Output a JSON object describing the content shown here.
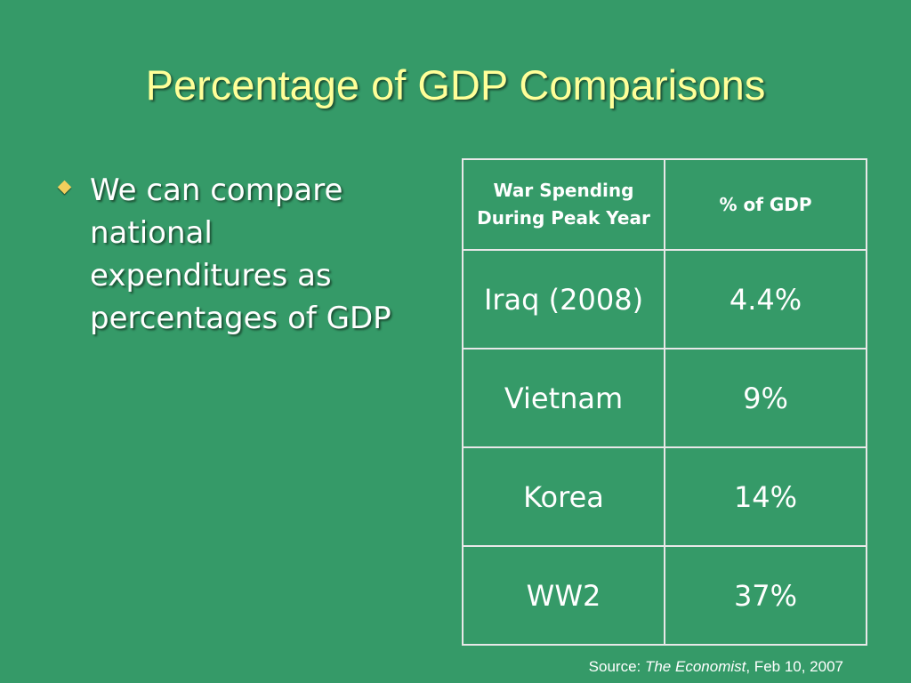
{
  "slide": {
    "title": "Percentage of GDP Comparisons",
    "bullet": "We can compare national expenditures as percentages of GDP",
    "bullet_icon": "diamond-bullet-icon"
  },
  "table": {
    "headers": [
      "War Spending During Peak Year",
      "% of GDP"
    ],
    "rows": [
      [
        "Iraq (2008)",
        "4.4%"
      ],
      [
        "Vietnam",
        "9%"
      ],
      [
        "Korea",
        "14%"
      ],
      [
        "WW2",
        "37%"
      ]
    ]
  },
  "source": {
    "label": "Source: ",
    "publication": "The Economist",
    "date": ", Feb 10, 2007"
  },
  "colors": {
    "background": "#359a68",
    "title": "#ffff99",
    "bullet": "#f3cf5c",
    "text": "#ffffff"
  }
}
